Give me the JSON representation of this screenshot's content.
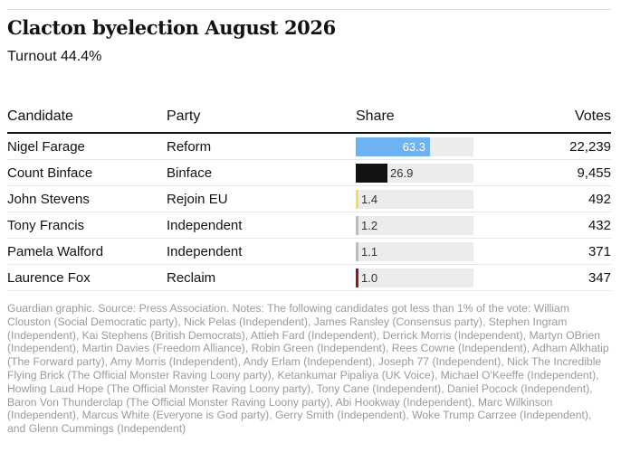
{
  "header": {
    "title": "Clacton byelection August 2026",
    "subtitle": "Turnout 44.4%"
  },
  "table": {
    "columns": {
      "candidate": "Candidate",
      "party": "Party",
      "share": "Share",
      "votes": "Votes"
    }
  },
  "chart_data": {
    "type": "table",
    "title": "Clacton byelection August 2026",
    "subtitle": "Turnout 44.4%",
    "columns": [
      "Candidate",
      "Party",
      "Share",
      "Votes"
    ],
    "share_max": 100,
    "rows": [
      {
        "candidate": "Nigel Farage",
        "party": "Reform",
        "share": 63.3,
        "share_label": "63.3",
        "votes": "22,239",
        "color": "#6db3f2"
      },
      {
        "candidate": "Count Binface",
        "party": "Binface",
        "share": 26.9,
        "share_label": "26.9",
        "votes": "9,455",
        "color": "#121212"
      },
      {
        "candidate": "John Stevens",
        "party": "Rejoin EU",
        "share": 1.4,
        "share_label": "1.4",
        "votes": "492",
        "color": "#f2dc5d"
      },
      {
        "candidate": "Tony Francis",
        "party": "Independent",
        "share": 1.2,
        "share_label": "1.2",
        "votes": "432",
        "color": "#bdbdbd"
      },
      {
        "candidate": "Pamela Walford",
        "party": "Independent",
        "share": 1.1,
        "share_label": "1.1",
        "votes": "371",
        "color": "#bdbdbd"
      },
      {
        "candidate": "Laurence Fox",
        "party": "Reclaim",
        "share": 1.0,
        "share_label": "1.0",
        "votes": "347",
        "color": "#8b1a1a"
      }
    ]
  },
  "footer": {
    "notes": "Guardian graphic. Source: Press Association. Notes: The following candidates got less than 1% of the vote: William Clouston (Social Democratic party), Nick Pelas (Independent), James Ransley (Consensus party), Stephen Ingram (Independent), Kai Stephens (British Democrats), Attieh Fard (Independent), Derrick Morris (Independent), Martyn OBrien (Independent), Martin Davies (Freedom Alliance), Robin Green (Independent), Rees Cowne (Independent), Adham Alkhatip (The Forward party), Amy Morris (Independent), Andy Erlam (Independent), Joseph 77 (Independent), Nick The Incredible Flying Brick (The Official Monster Raving Loony party), Ketankumar Pipaliya (UK Voice), Michael O'Keeffe (Independent), Howling Laud Hope (The Official Monster Raving Loony party), Tony Cane (Independent), Daniel Pocock (Independent), Baron Von Thunderclap (The Official Monster Raving Loony party), Abi Hookway (Independent), Marc Wilkinson (Independent), Marcus White (Everyone is God party), Gerry Smith (Independent), Woke Trump Carrzee (Independent), and Glenn Cummings (Independent)"
  }
}
